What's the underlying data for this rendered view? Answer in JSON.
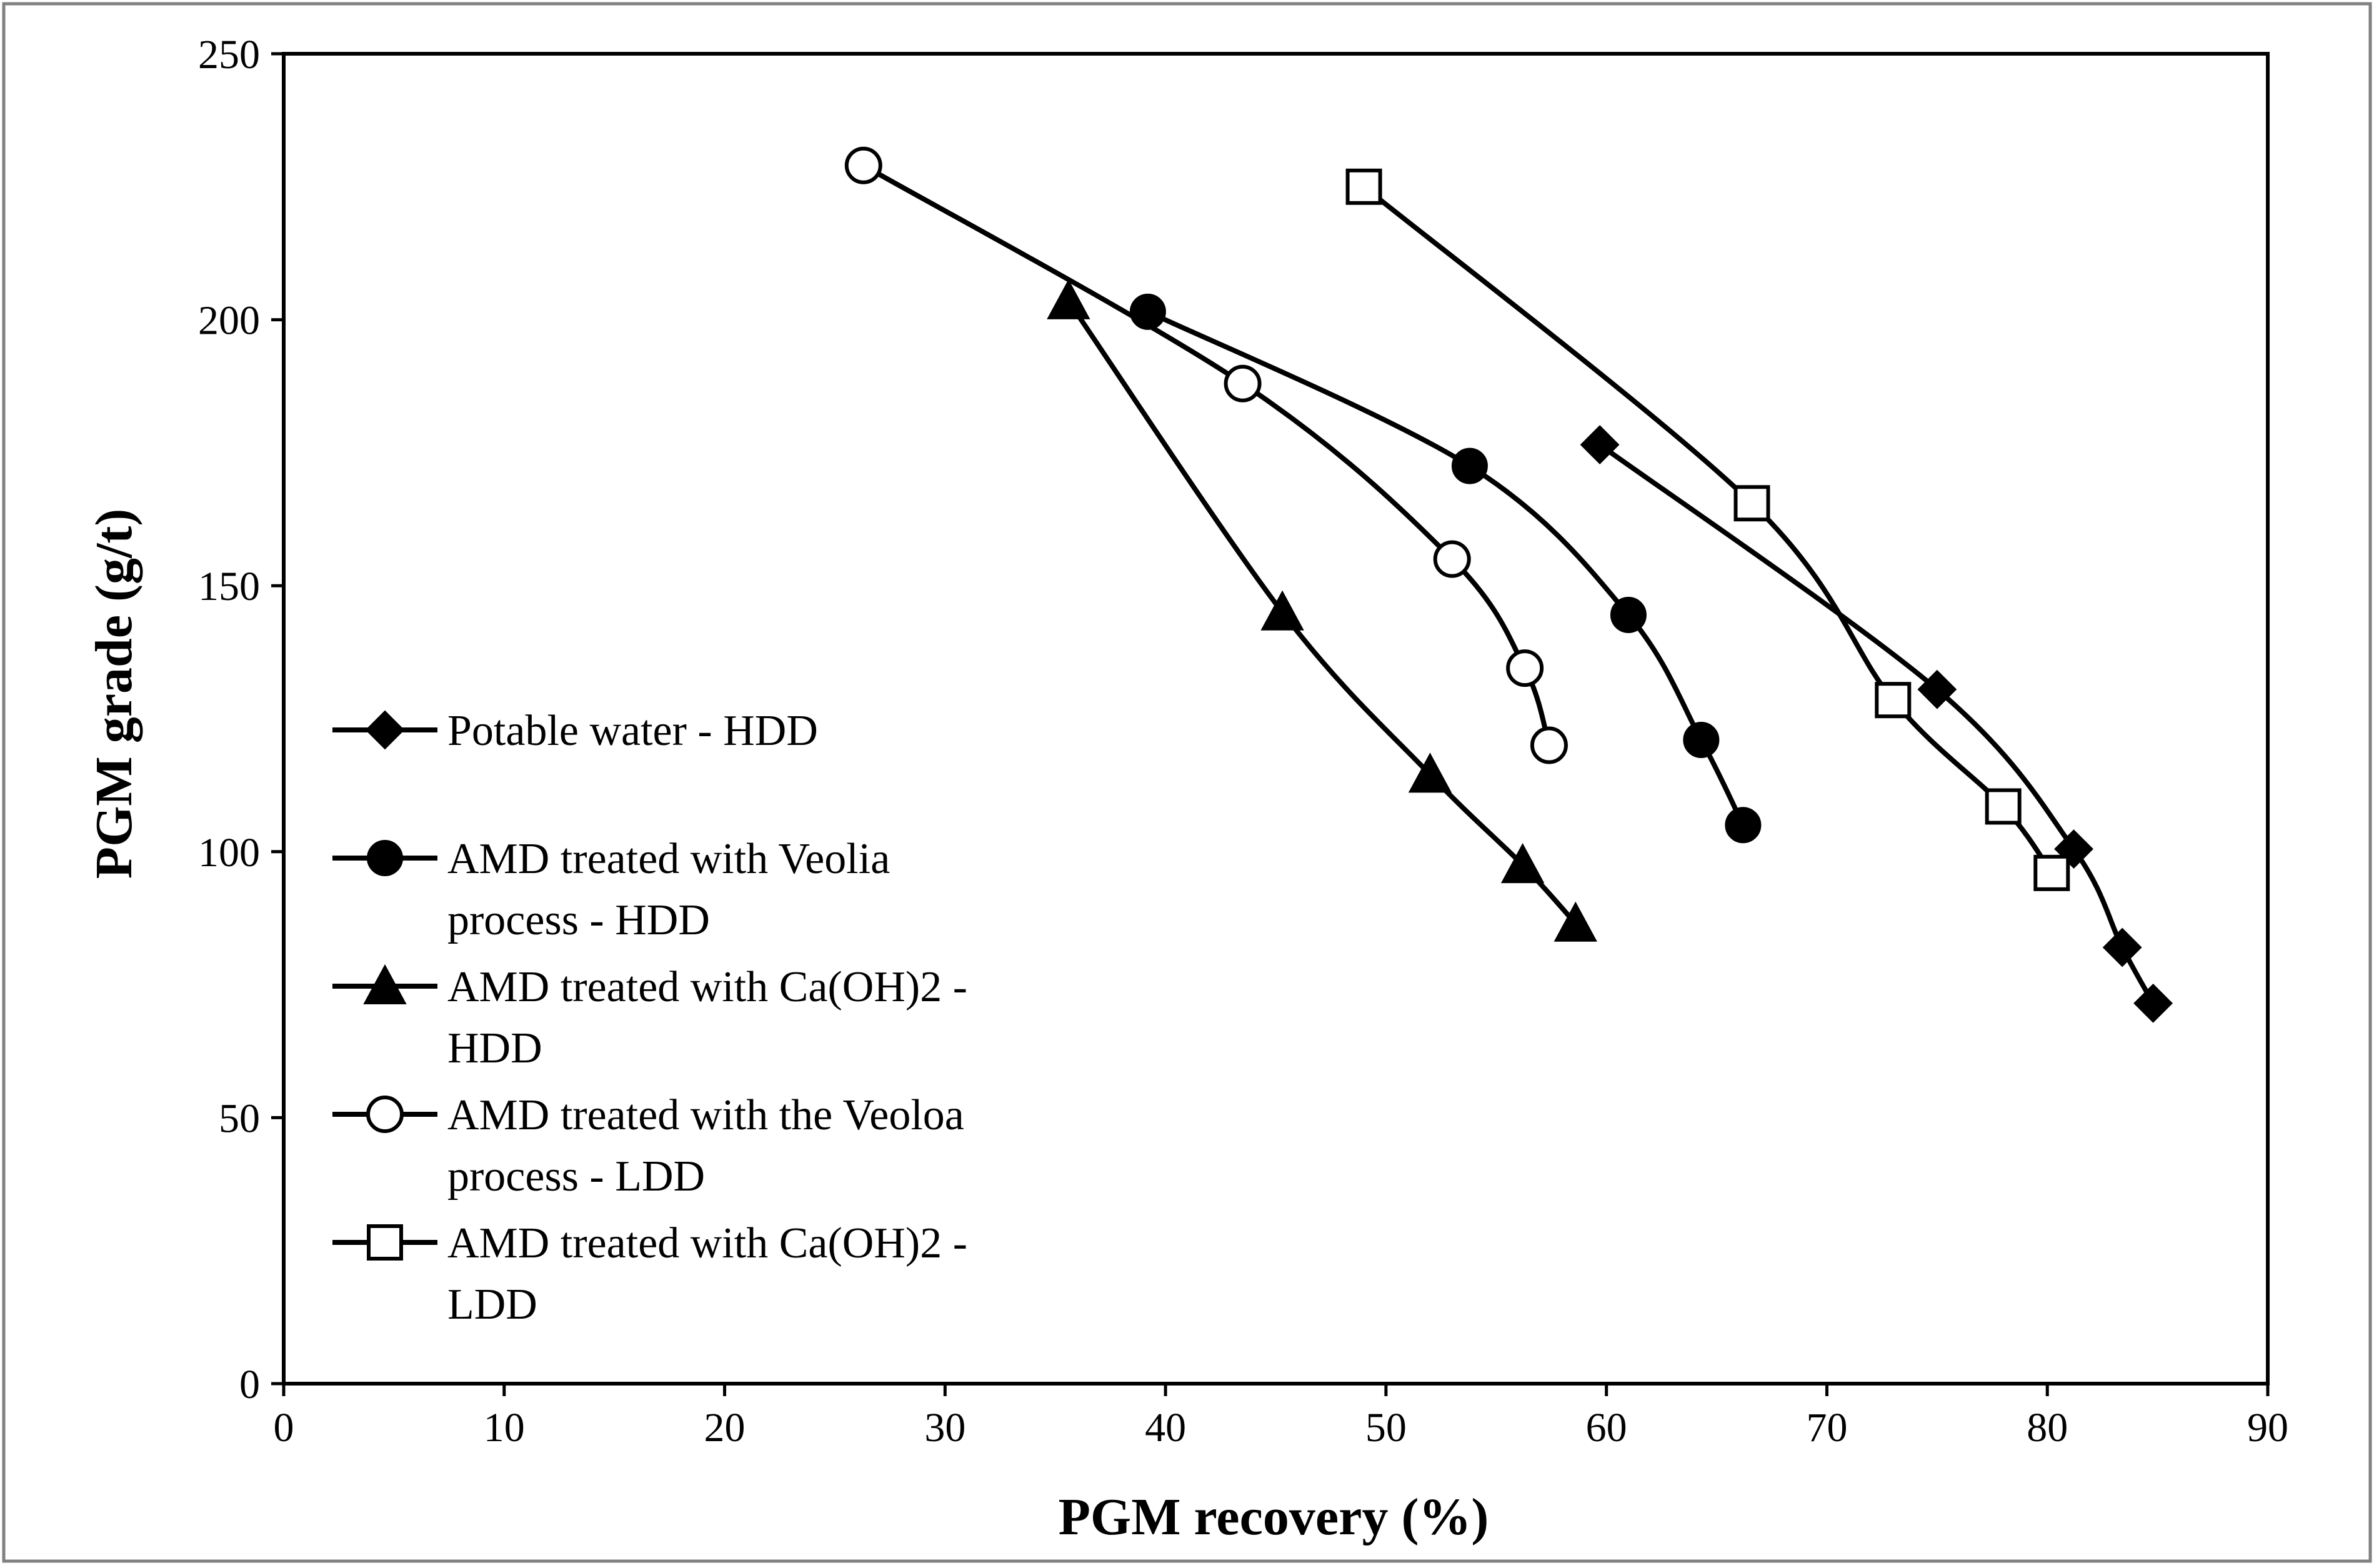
{
  "chart_data": {
    "type": "line",
    "title": "",
    "xlabel": "PGM recovery (%)",
    "ylabel": "PGM grade (g/t)",
    "xlim": [
      0,
      90
    ],
    "ylim": [
      0,
      250
    ],
    "xticks": [
      0,
      10,
      20,
      30,
      40,
      50,
      60,
      70,
      80,
      90
    ],
    "yticks": [
      0,
      50,
      100,
      150,
      200,
      250
    ],
    "grid": false,
    "legend_position": "left",
    "series_color": "#000000",
    "series": [
      {
        "name": "Potable water - HDD",
        "legend_lines": [
          "Potable water - HDD"
        ],
        "marker": "diamond-filled",
        "x": [
          59.7,
          75.0,
          81.2,
          83.4,
          84.8
        ],
        "y": [
          176.5,
          130.5,
          100.5,
          82.0,
          71.5
        ]
      },
      {
        "name": "AMD treated with Veolia process - HDD",
        "legend_lines": [
          "AMD treated with Veolia",
          "process - HDD"
        ],
        "marker": "circle-filled",
        "x": [
          39.2,
          53.8,
          61.0,
          64.3,
          66.2
        ],
        "y": [
          201.5,
          172.5,
          144.5,
          121.0,
          105.0
        ]
      },
      {
        "name": "AMD treated with Ca(OH)2 - HDD",
        "legend_lines": [
          "AMD treated with Ca(OH)2 -",
          "HDD"
        ],
        "marker": "triangle-filled",
        "x": [
          35.6,
          45.3,
          52.0,
          56.2,
          58.6
        ],
        "y": [
          203.5,
          145.0,
          114.5,
          97.5,
          86.5
        ]
      },
      {
        "name": "AMD treated with the Veoloa process - LDD",
        "legend_lines": [
          "AMD treated with the Veoloa",
          "process - LDD"
        ],
        "marker": "circle-open",
        "x": [
          26.3,
          43.5,
          53.0,
          56.3,
          57.4
        ],
        "y": [
          229.0,
          188.0,
          155.0,
          134.5,
          120.0
        ]
      },
      {
        "name": "AMD treated with Ca(OH)2 - LDD",
        "legend_lines": [
          "AMD treated with Ca(OH)2 -",
          "LDD"
        ],
        "marker": "square-open",
        "x": [
          49.0,
          66.6,
          73.0,
          78.0,
          80.2
        ],
        "y": [
          225.0,
          165.5,
          128.5,
          108.5,
          96.0
        ]
      }
    ]
  }
}
